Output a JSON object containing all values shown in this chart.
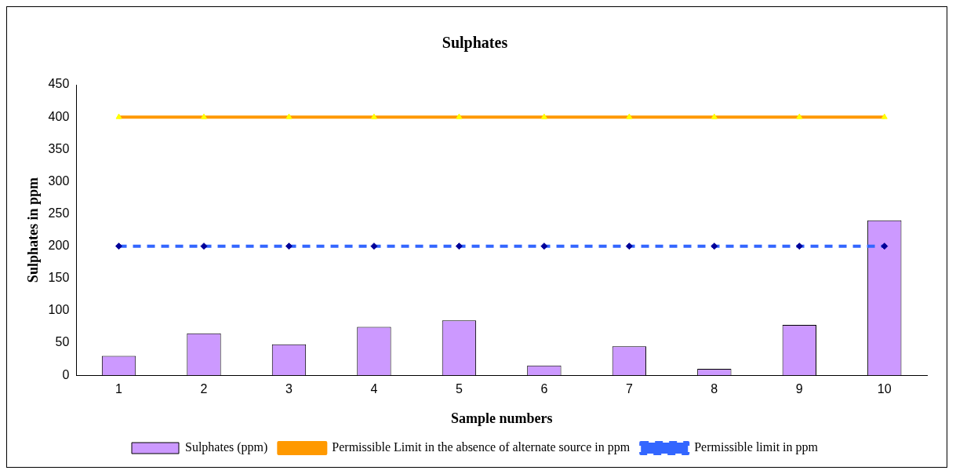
{
  "chart_data": {
    "type": "bar",
    "title": "Sulphates",
    "xlabel": "Sample numbers",
    "ylabel": "Sulphates in ppm",
    "categories": [
      "1",
      "2",
      "3",
      "4",
      "5",
      "6",
      "7",
      "8",
      "9",
      "10"
    ],
    "series": [
      {
        "name": "Sulphates (ppm)",
        "color": "#cc99ff",
        "values": [
          30,
          65,
          48,
          75,
          85,
          15,
          45,
          10,
          78,
          240
        ]
      },
      {
        "name": "Permissible Limit in the absence of alternate source in ppm",
        "type": "line",
        "color": "#ff9900",
        "marker": "triangle",
        "line_style": "solid",
        "values": [
          400,
          400,
          400,
          400,
          400,
          400,
          400,
          400,
          400,
          400
        ]
      },
      {
        "name": "Permissible limit in ppm",
        "type": "line",
        "color": "#3366ff",
        "marker": "diamond",
        "line_style": "dashed",
        "values": [
          200,
          200,
          200,
          200,
          200,
          200,
          200,
          200,
          200,
          200
        ]
      }
    ],
    "ylim": [
      0,
      450
    ],
    "yticks": [
      0,
      50,
      100,
      150,
      200,
      250,
      300,
      350,
      400,
      450
    ],
    "grid": false,
    "legend": "bottom"
  }
}
